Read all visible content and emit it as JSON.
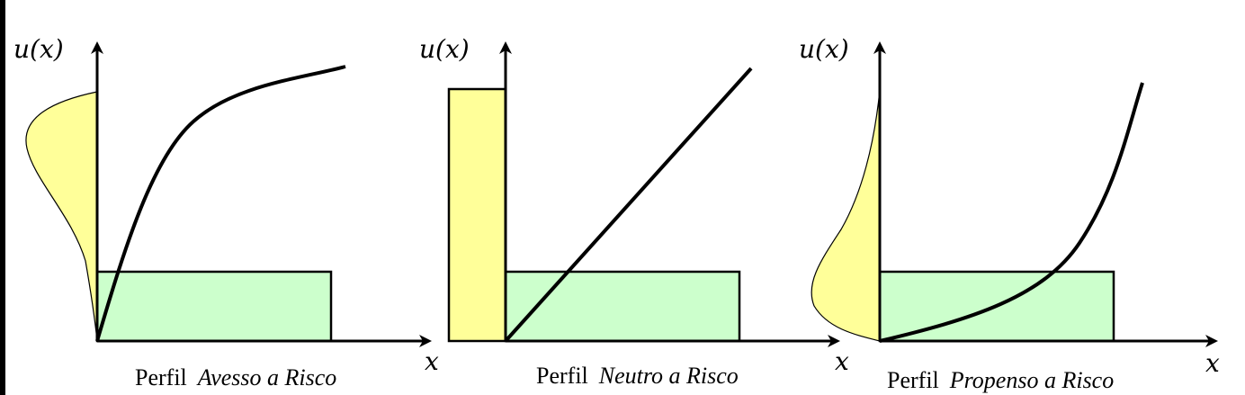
{
  "panels": [
    {
      "id": "avesso",
      "y_axis_label": "u(x)",
      "x_axis_label": "x",
      "caption_prefix": "Perfil",
      "caption_emphasis": "Avesso a Risco",
      "curve_shape": "concave",
      "input_distribution": "uniform-x",
      "output_distribution": "skewed-high"
    },
    {
      "id": "neutro",
      "y_axis_label": "u(x)",
      "x_axis_label": "x",
      "caption_prefix": "Perfil",
      "caption_emphasis": "Neutro a Risco",
      "curve_shape": "linear",
      "input_distribution": "uniform-x",
      "output_distribution": "uniform"
    },
    {
      "id": "propenso",
      "y_axis_label": "u(x)",
      "x_axis_label": "x",
      "caption_prefix": "Perfil",
      "caption_emphasis": "Propenso a Risco",
      "curve_shape": "convex",
      "input_distribution": "uniform-x",
      "output_distribution": "skewed-low"
    }
  ],
  "colors": {
    "output_density_fill": "#ffff99",
    "input_density_fill": "#ccffcc",
    "stroke": "#000000",
    "left_border": "#000000"
  }
}
